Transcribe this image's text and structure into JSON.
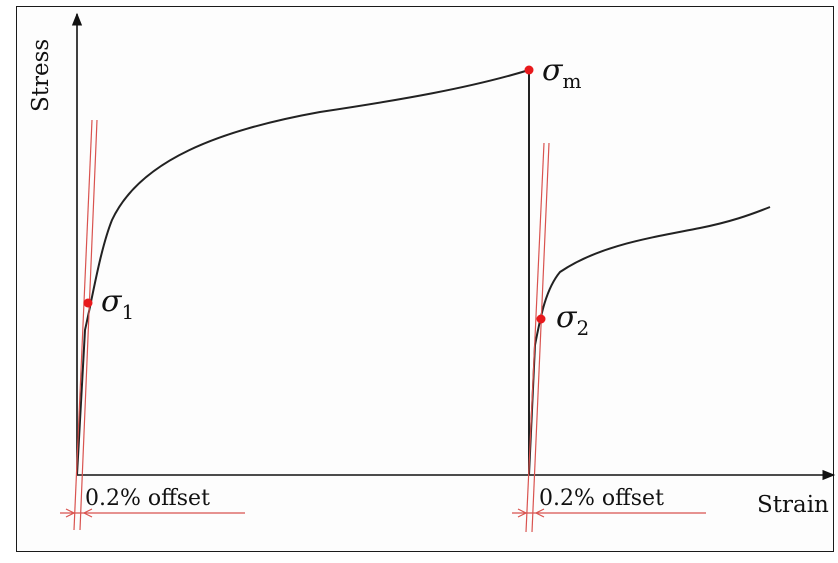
{
  "axes": {
    "y_label": "Stress",
    "x_label": "Strain"
  },
  "offset_labels": [
    "0.2% offset",
    "0.2% offset"
  ],
  "points": {
    "sigma_m": {
      "symbol": "σ",
      "subscript": "m"
    },
    "sigma_1": {
      "symbol": "σ",
      "subscript": "1"
    },
    "sigma_2": {
      "symbol": "σ",
      "subscript": "2"
    }
  },
  "colors": {
    "curve": "#222222",
    "offset_line": "#d9534f",
    "point": "#e8191c",
    "axis": "#111111"
  }
}
